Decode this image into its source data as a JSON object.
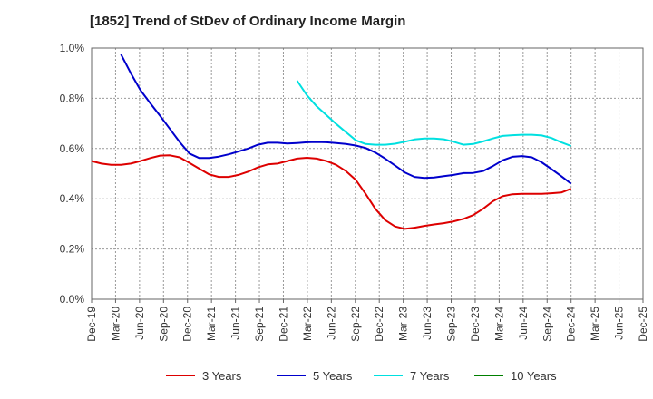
{
  "chart_data": {
    "type": "line",
    "title": "[1852]  Trend of StDev of Ordinary Income Margin",
    "xlabel": "",
    "ylabel": "",
    "x_tick_labels": [
      "Dec-19",
      "Mar-20",
      "Jun-20",
      "Sep-20",
      "Dec-20",
      "Mar-21",
      "Jun-21",
      "Sep-21",
      "Dec-21",
      "Mar-22",
      "Jun-22",
      "Sep-22",
      "Dec-22",
      "Mar-23",
      "Jun-23",
      "Sep-23",
      "Dec-23",
      "Mar-24",
      "Jun-24",
      "Sep-24",
      "Dec-24",
      "Mar-25",
      "Jun-25",
      "Dec-25"
    ],
    "y_tick_labels": [
      "0.0%",
      "0.2%",
      "0.4%",
      "0.6%",
      "0.8%",
      "1.0%"
    ],
    "ylim": [
      0,
      1.0
    ],
    "grid": true,
    "legend_position": "bottom",
    "series": [
      {
        "name": "3 Years",
        "color": "#dd0000",
        "values": [
          0.55,
          0.54,
          0.535,
          0.535,
          0.54,
          0.55,
          0.562,
          0.572,
          0.573,
          0.565,
          0.543,
          0.52,
          0.497,
          0.487,
          0.487,
          0.495,
          0.508,
          0.525,
          0.537,
          0.54,
          0.55,
          0.56,
          0.563,
          0.56,
          0.55,
          0.535,
          0.51,
          0.475,
          0.42,
          0.36,
          0.315,
          0.29,
          0.28,
          0.285,
          0.292,
          0.298,
          0.303,
          0.31,
          0.32,
          0.335,
          0.36,
          0.39,
          0.41,
          0.418,
          0.42,
          0.42,
          0.42,
          0.422,
          0.425,
          0.44
        ]
      },
      {
        "name": "5 Years",
        "color": "#0000cc",
        "values": [
          null,
          null,
          null,
          0.975,
          0.9,
          0.832,
          0.78,
          0.73,
          0.678,
          0.626,
          0.58,
          0.562,
          0.562,
          0.568,
          0.577,
          0.588,
          0.6,
          0.615,
          0.623,
          0.623,
          0.62,
          0.622,
          0.625,
          0.626,
          0.625,
          0.622,
          0.618,
          0.612,
          0.602,
          0.584,
          0.56,
          0.533,
          0.505,
          0.487,
          0.483,
          0.485,
          0.49,
          0.495,
          0.502,
          0.503,
          0.51,
          0.53,
          0.553,
          0.567,
          0.57,
          0.565,
          0.545,
          0.518,
          0.49,
          0.46
        ]
      },
      {
        "name": "7 Years",
        "color": "#00e0e0",
        "values": [
          null,
          null,
          null,
          null,
          null,
          null,
          null,
          null,
          null,
          null,
          null,
          null,
          null,
          null,
          null,
          null,
          null,
          null,
          null,
          null,
          null,
          0.87,
          0.812,
          0.768,
          0.733,
          0.698,
          0.665,
          0.633,
          0.618,
          0.615,
          0.615,
          0.619,
          0.627,
          0.636,
          0.64,
          0.64,
          0.637,
          0.627,
          0.615,
          0.618,
          0.628,
          0.64,
          0.65,
          0.653,
          0.655,
          0.655,
          0.652,
          0.642,
          0.625,
          0.61
        ]
      },
      {
        "name": "10 Years",
        "color": "#008000",
        "values": []
      }
    ]
  }
}
